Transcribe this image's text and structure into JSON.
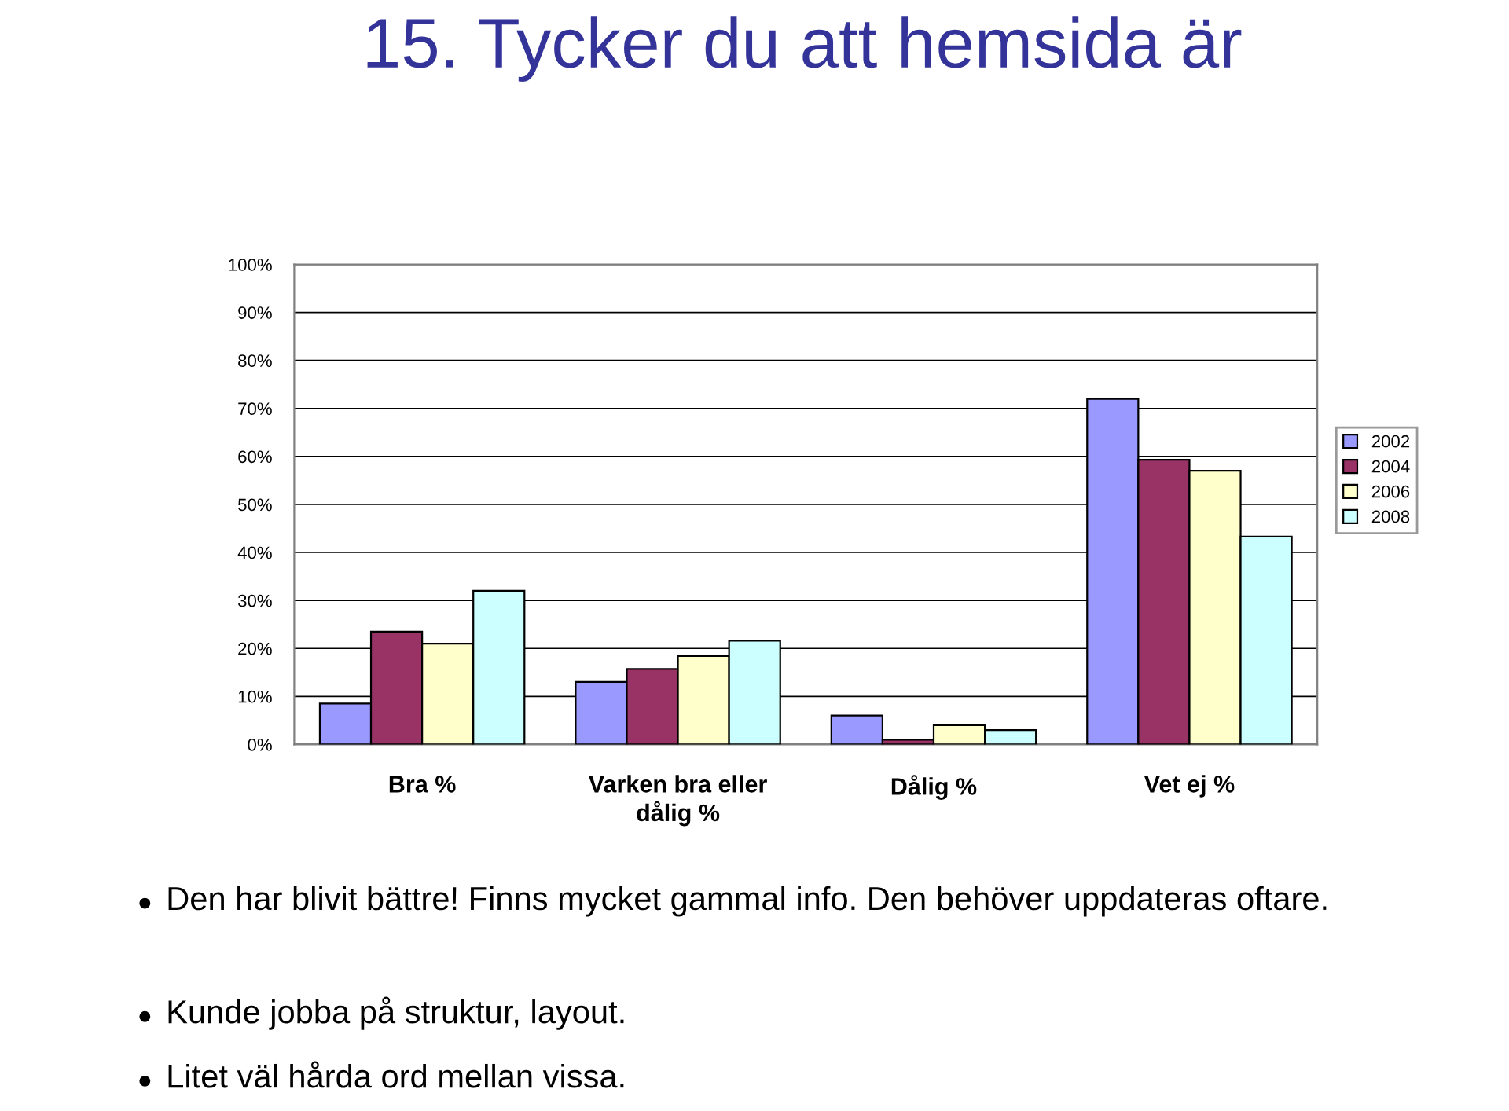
{
  "chart_data": {
    "type": "bar",
    "title": "15. Tycker du att hemsida är",
    "categories": [
      "Bra %",
      "Varken bra eller\ndålig %",
      "Dålig %",
      "Vet ej %"
    ],
    "series": [
      {
        "name": "2002",
        "color": "#9999ff",
        "values": [
          8.5,
          13,
          6,
          72
        ]
      },
      {
        "name": "2004",
        "color": "#993366",
        "values": [
          23.5,
          15.7,
          1,
          59.3
        ]
      },
      {
        "name": "2006",
        "color": "#ffffcc",
        "values": [
          21,
          18.4,
          4,
          57
        ]
      },
      {
        "name": "2008",
        "color": "#ccffff",
        "values": [
          32,
          21.6,
          3,
          43.3
        ]
      }
    ],
    "ylim": [
      0,
      100
    ],
    "yticks": [
      {
        "value": 0,
        "label": "0%"
      },
      {
        "value": 10,
        "label": "10%"
      },
      {
        "value": 20,
        "label": "20%"
      },
      {
        "value": 30,
        "label": "30%"
      },
      {
        "value": 40,
        "label": "40%"
      },
      {
        "value": 50,
        "label": "50%"
      },
      {
        "value": 60,
        "label": "60%"
      },
      {
        "value": 70,
        "label": "70%"
      },
      {
        "value": 80,
        "label": "80%"
      },
      {
        "value": 90,
        "label": "90%"
      },
      {
        "value": 100,
        "label": "100%"
      }
    ],
    "grid": "y",
    "legend": "right",
    "annotations": [
      "Den har blivit bättre! Finns mycket gammal info. Den behöver uppdateras oftare.",
      "Kunde jobba på struktur, layout.",
      "Litet väl hårda ord mellan vissa."
    ]
  }
}
